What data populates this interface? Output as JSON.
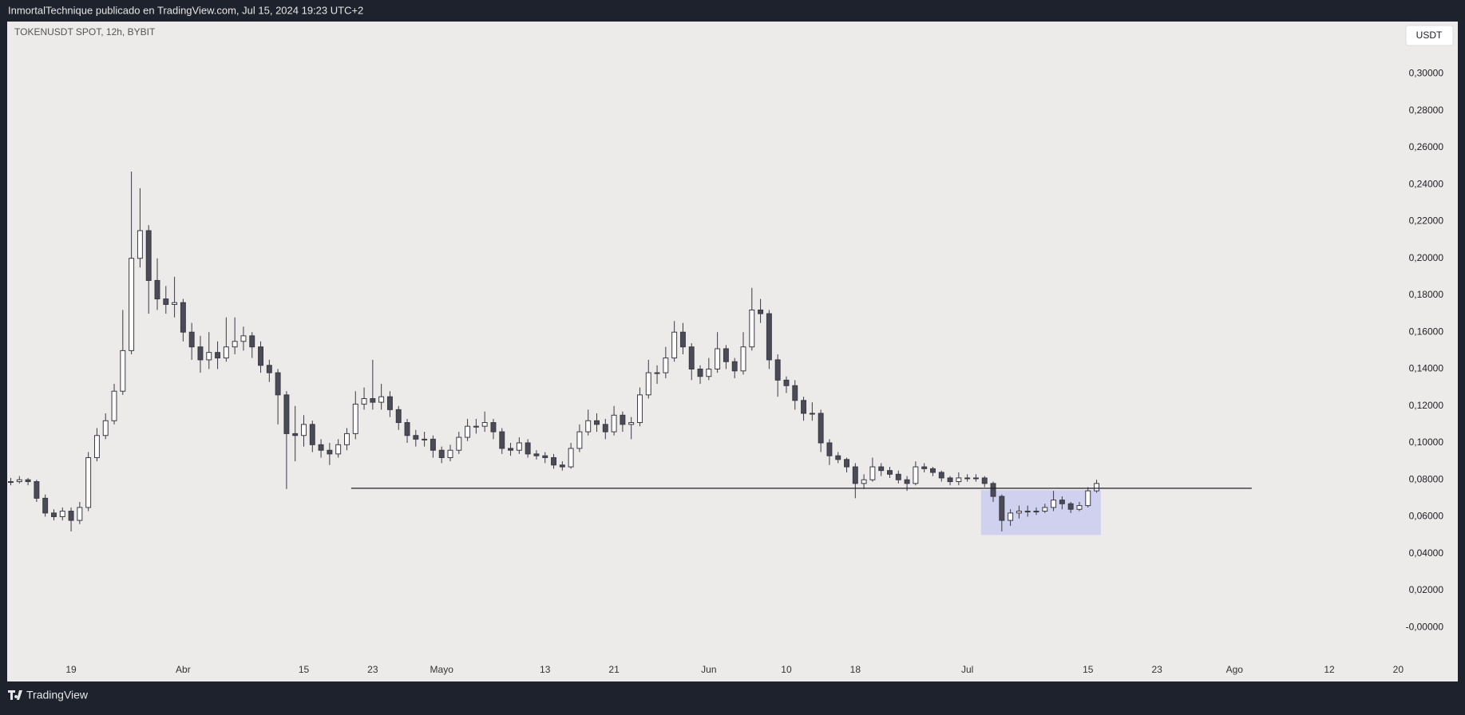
{
  "header": "InmortalTechnique publicado en TradingView.com, Jul 15, 2024 19:23 UTC+2",
  "footer": "TradingView",
  "chart_data": {
    "type": "candlestick",
    "title": "TOKENUSDT SPOT, 12h, BYBIT",
    "currency": "USDT",
    "up_color": "#ffffff",
    "down_color": "#4b4b57",
    "outline_color": "#3a3a44",
    "x": [
      "2024-03-12",
      "2024-03-13",
      "2024-03-14",
      "2024-03-15",
      "2024-03-16",
      "2024-03-17",
      "2024-03-18",
      "2024-03-19",
      "2024-03-20",
      "2024-03-21",
      "2024-03-22",
      "2024-03-23",
      "2024-03-24",
      "2024-03-25",
      "2024-03-26",
      "2024-03-27",
      "2024-03-28",
      "2024-03-29",
      "2024-03-30",
      "2024-03-31",
      "2024-04-01",
      "2024-04-02",
      "2024-04-03",
      "2024-04-04",
      "2024-04-05",
      "2024-04-06",
      "2024-04-07",
      "2024-04-08",
      "2024-04-09",
      "2024-04-10",
      "2024-04-11",
      "2024-04-12",
      "2024-04-13",
      "2024-04-14",
      "2024-04-15",
      "2024-04-16",
      "2024-04-17",
      "2024-04-18",
      "2024-04-19",
      "2024-04-20",
      "2024-04-21",
      "2024-04-22",
      "2024-04-23",
      "2024-04-24",
      "2024-04-25",
      "2024-04-26",
      "2024-04-27",
      "2024-04-28",
      "2024-04-29",
      "2024-04-30",
      "2024-05-01",
      "2024-05-02",
      "2024-05-03",
      "2024-05-04",
      "2024-05-05",
      "2024-05-06",
      "2024-05-07",
      "2024-05-08",
      "2024-05-09",
      "2024-05-10",
      "2024-05-11",
      "2024-05-12",
      "2024-05-13",
      "2024-05-14",
      "2024-05-15",
      "2024-05-16",
      "2024-05-17",
      "2024-05-18",
      "2024-05-19",
      "2024-05-20",
      "2024-05-21",
      "2024-05-22",
      "2024-05-23",
      "2024-05-24",
      "2024-05-25",
      "2024-05-26",
      "2024-05-27",
      "2024-05-28",
      "2024-05-29",
      "2024-05-30",
      "2024-05-31",
      "2024-06-01",
      "2024-06-02",
      "2024-06-03",
      "2024-06-04",
      "2024-06-05",
      "2024-06-06",
      "2024-06-07",
      "2024-06-08",
      "2024-06-09",
      "2024-06-10",
      "2024-06-11",
      "2024-06-12",
      "2024-06-13",
      "2024-06-14",
      "2024-06-15",
      "2024-06-16",
      "2024-06-17",
      "2024-06-18",
      "2024-06-19",
      "2024-06-20",
      "2024-06-21",
      "2024-06-22",
      "2024-06-23",
      "2024-06-24",
      "2024-06-25",
      "2024-06-26",
      "2024-06-27",
      "2024-06-28",
      "2024-06-29",
      "2024-06-30",
      "2024-07-01",
      "2024-07-02",
      "2024-07-03",
      "2024-07-04",
      "2024-07-05",
      "2024-07-06",
      "2024-07-07",
      "2024-07-08",
      "2024-07-09",
      "2024-07-10",
      "2024-07-11",
      "2024-07-12",
      "2024-07-13",
      "2024-07-14",
      "2024-07-15",
      "2024-07-16"
    ],
    "open": [
      0.079,
      0.079,
      0.08,
      0.079,
      0.07,
      0.062,
      0.06,
      0.063,
      0.058,
      0.065,
      0.092,
      0.104,
      0.112,
      0.128,
      0.15,
      0.2,
      0.215,
      0.188,
      0.178,
      0.175,
      0.176,
      0.16,
      0.152,
      0.145,
      0.149,
      0.146,
      0.152,
      0.155,
      0.158,
      0.152,
      0.142,
      0.138,
      0.126,
      0.105,
      0.104,
      0.11,
      0.099,
      0.096,
      0.094,
      0.099,
      0.105,
      0.121,
      0.124,
      0.122,
      0.125,
      0.118,
      0.111,
      0.104,
      0.102,
      0.102,
      0.096,
      0.092,
      0.096,
      0.103,
      0.109,
      0.109,
      0.111,
      0.106,
      0.097,
      0.096,
      0.1,
      0.094,
      0.093,
      0.092,
      0.088,
      0.087,
      0.097,
      0.106,
      0.112,
      0.11,
      0.106,
      0.115,
      0.11,
      0.111,
      0.126,
      0.138,
      0.138,
      0.146,
      0.16,
      0.152,
      0.14,
      0.136,
      0.14,
      0.151,
      0.144,
      0.139,
      0.152,
      0.172,
      0.17,
      0.145,
      0.134,
      0.131,
      0.123,
      0.116,
      0.116,
      0.1,
      0.093,
      0.091,
      0.087,
      0.078,
      0.08,
      0.087,
      0.085,
      0.083,
      0.08,
      0.078,
      0.087,
      0.086,
      0.084,
      0.081,
      0.079,
      0.081,
      0.081,
      0.081,
      0.078,
      0.071,
      0.058,
      0.062,
      0.063,
      0.063,
      0.063,
      0.065,
      0.069,
      0.067,
      0.064,
      0.066,
      0.074
    ],
    "high": [
      0.081,
      0.082,
      0.081,
      0.08,
      0.072,
      0.064,
      0.065,
      0.065,
      0.068,
      0.095,
      0.108,
      0.116,
      0.132,
      0.172,
      0.247,
      0.238,
      0.218,
      0.2,
      0.185,
      0.19,
      0.178,
      0.165,
      0.158,
      0.16,
      0.155,
      0.168,
      0.168,
      0.163,
      0.16,
      0.155,
      0.145,
      0.14,
      0.128,
      0.12,
      0.115,
      0.112,
      0.102,
      0.1,
      0.102,
      0.108,
      0.128,
      0.13,
      0.145,
      0.132,
      0.128,
      0.12,
      0.113,
      0.107,
      0.106,
      0.104,
      0.098,
      0.099,
      0.106,
      0.113,
      0.113,
      0.117,
      0.113,
      0.108,
      0.1,
      0.103,
      0.102,
      0.096,
      0.095,
      0.094,
      0.09,
      0.1,
      0.11,
      0.118,
      0.116,
      0.113,
      0.12,
      0.117,
      0.114,
      0.13,
      0.145,
      0.142,
      0.152,
      0.166,
      0.165,
      0.154,
      0.142,
      0.146,
      0.16,
      0.153,
      0.146,
      0.16,
      0.184,
      0.178,
      0.172,
      0.148,
      0.136,
      0.134,
      0.125,
      0.122,
      0.118,
      0.102,
      0.095,
      0.092,
      0.089,
      0.083,
      0.092,
      0.089,
      0.087,
      0.085,
      0.082,
      0.09,
      0.089,
      0.087,
      0.085,
      0.082,
      0.084,
      0.083,
      0.083,
      0.082,
      0.079,
      0.072,
      0.064,
      0.066,
      0.066,
      0.065,
      0.067,
      0.074,
      0.071,
      0.068,
      0.068,
      0.076,
      0.08
    ],
    "low": [
      0.077,
      0.078,
      0.077,
      0.068,
      0.06,
      0.058,
      0.058,
      0.052,
      0.056,
      0.063,
      0.09,
      0.102,
      0.11,
      0.126,
      0.148,
      0.195,
      0.17,
      0.172,
      0.17,
      0.168,
      0.155,
      0.145,
      0.138,
      0.14,
      0.14,
      0.144,
      0.148,
      0.15,
      0.146,
      0.138,
      0.133,
      0.11,
      0.075,
      0.09,
      0.098,
      0.095,
      0.092,
      0.088,
      0.092,
      0.096,
      0.102,
      0.118,
      0.118,
      0.118,
      0.114,
      0.107,
      0.1,
      0.098,
      0.098,
      0.092,
      0.089,
      0.09,
      0.094,
      0.101,
      0.105,
      0.106,
      0.102,
      0.094,
      0.093,
      0.094,
      0.092,
      0.091,
      0.089,
      0.086,
      0.085,
      0.086,
      0.095,
      0.104,
      0.106,
      0.102,
      0.104,
      0.106,
      0.102,
      0.109,
      0.124,
      0.132,
      0.135,
      0.144,
      0.148,
      0.134,
      0.132,
      0.134,
      0.138,
      0.14,
      0.135,
      0.137,
      0.15,
      0.165,
      0.14,
      0.125,
      0.127,
      0.118,
      0.112,
      0.112,
      0.095,
      0.088,
      0.089,
      0.084,
      0.07,
      0.075,
      0.079,
      0.082,
      0.081,
      0.078,
      0.074,
      0.077,
      0.084,
      0.082,
      0.079,
      0.077,
      0.077,
      0.079,
      0.079,
      0.076,
      0.068,
      0.052,
      0.055,
      0.059,
      0.06,
      0.061,
      0.062,
      0.063,
      0.064,
      0.062,
      0.063,
      0.065,
      0.073
    ],
    "close": [
      0.079,
      0.08,
      0.079,
      0.07,
      0.062,
      0.06,
      0.063,
      0.058,
      0.065,
      0.092,
      0.104,
      0.112,
      0.128,
      0.15,
      0.2,
      0.215,
      0.188,
      0.178,
      0.175,
      0.176,
      0.16,
      0.152,
      0.145,
      0.149,
      0.146,
      0.152,
      0.155,
      0.158,
      0.152,
      0.142,
      0.138,
      0.126,
      0.105,
      0.104,
      0.11,
      0.099,
      0.096,
      0.094,
      0.099,
      0.105,
      0.121,
      0.124,
      0.122,
      0.125,
      0.118,
      0.111,
      0.104,
      0.102,
      0.102,
      0.096,
      0.092,
      0.096,
      0.103,
      0.109,
      0.109,
      0.111,
      0.106,
      0.097,
      0.096,
      0.1,
      0.094,
      0.093,
      0.092,
      0.088,
      0.087,
      0.097,
      0.106,
      0.112,
      0.11,
      0.106,
      0.115,
      0.11,
      0.111,
      0.126,
      0.138,
      0.138,
      0.146,
      0.16,
      0.152,
      0.14,
      0.136,
      0.14,
      0.151,
      0.144,
      0.139,
      0.152,
      0.172,
      0.17,
      0.145,
      0.134,
      0.131,
      0.123,
      0.116,
      0.116,
      0.1,
      0.093,
      0.091,
      0.087,
      0.078,
      0.08,
      0.087,
      0.085,
      0.083,
      0.08,
      0.078,
      0.087,
      0.086,
      0.084,
      0.081,
      0.079,
      0.081,
      0.081,
      0.081,
      0.078,
      0.071,
      0.058,
      0.062,
      0.063,
      0.063,
      0.063,
      0.065,
      0.069,
      0.067,
      0.064,
      0.066,
      0.074,
      0.078
    ],
    "xlim": [
      "2024-03-11T14:00:00Z",
      "2024-08-20T17:00:00Z"
    ],
    "ylim": [
      -0.0293,
      0.3283
    ],
    "xticks": [
      {
        "value": "2024-03-19",
        "label": "19"
      },
      {
        "value": "2024-04-01",
        "label": "Abr"
      },
      {
        "value": "2024-04-15",
        "label": "15"
      },
      {
        "value": "2024-04-23",
        "label": "23"
      },
      {
        "value": "2024-05-01",
        "label": "Mayo"
      },
      {
        "value": "2024-05-13",
        "label": "13"
      },
      {
        "value": "2024-05-21",
        "label": "21"
      },
      {
        "value": "2024-06-01",
        "label": "Jun"
      },
      {
        "value": "2024-06-10",
        "label": "10"
      },
      {
        "value": "2024-06-18",
        "label": "18"
      },
      {
        "value": "2024-07-01",
        "label": "Jul"
      },
      {
        "value": "2024-07-15",
        "label": "15"
      },
      {
        "value": "2024-07-23",
        "label": "23"
      },
      {
        "value": "2024-08-01",
        "label": "Ago"
      },
      {
        "value": "2024-08-12",
        "label": "12"
      },
      {
        "value": "2024-08-20",
        "label": "20"
      }
    ],
    "yticks": [
      {
        "value": 0,
        "label": "-0,00000"
      },
      {
        "value": 0.02,
        "label": "0,02000"
      },
      {
        "value": 0.04,
        "label": "0,04000"
      },
      {
        "value": 0.06,
        "label": "0,06000"
      },
      {
        "value": 0.08,
        "label": "0,08000"
      },
      {
        "value": 0.1,
        "label": "0,10000"
      },
      {
        "value": 0.12,
        "label": "0,12000"
      },
      {
        "value": 0.14,
        "label": "0,14000"
      },
      {
        "value": 0.16,
        "label": "0,16000"
      },
      {
        "value": 0.18,
        "label": "0,18000"
      },
      {
        "value": 0.2,
        "label": "0,20000"
      },
      {
        "value": 0.22,
        "label": "0,22000"
      },
      {
        "value": 0.24,
        "label": "0,24000"
      },
      {
        "value": 0.26,
        "label": "0,26000"
      },
      {
        "value": 0.28,
        "label": "0,28000"
      },
      {
        "value": 0.3,
        "label": "0,30000"
      }
    ],
    "hline": {
      "value": 0.0754,
      "x": [
        "2024-04-20T12:00:00Z",
        "2024-08-03T00:00:00Z"
      ],
      "color": "#1e1e24"
    },
    "zone": {
      "x": [
        "2024-07-02T14:00:00Z",
        "2024-07-16T12:00:00Z"
      ],
      "y": [
        0.0501,
        0.0744
      ],
      "color": "#c9cdee"
    }
  }
}
